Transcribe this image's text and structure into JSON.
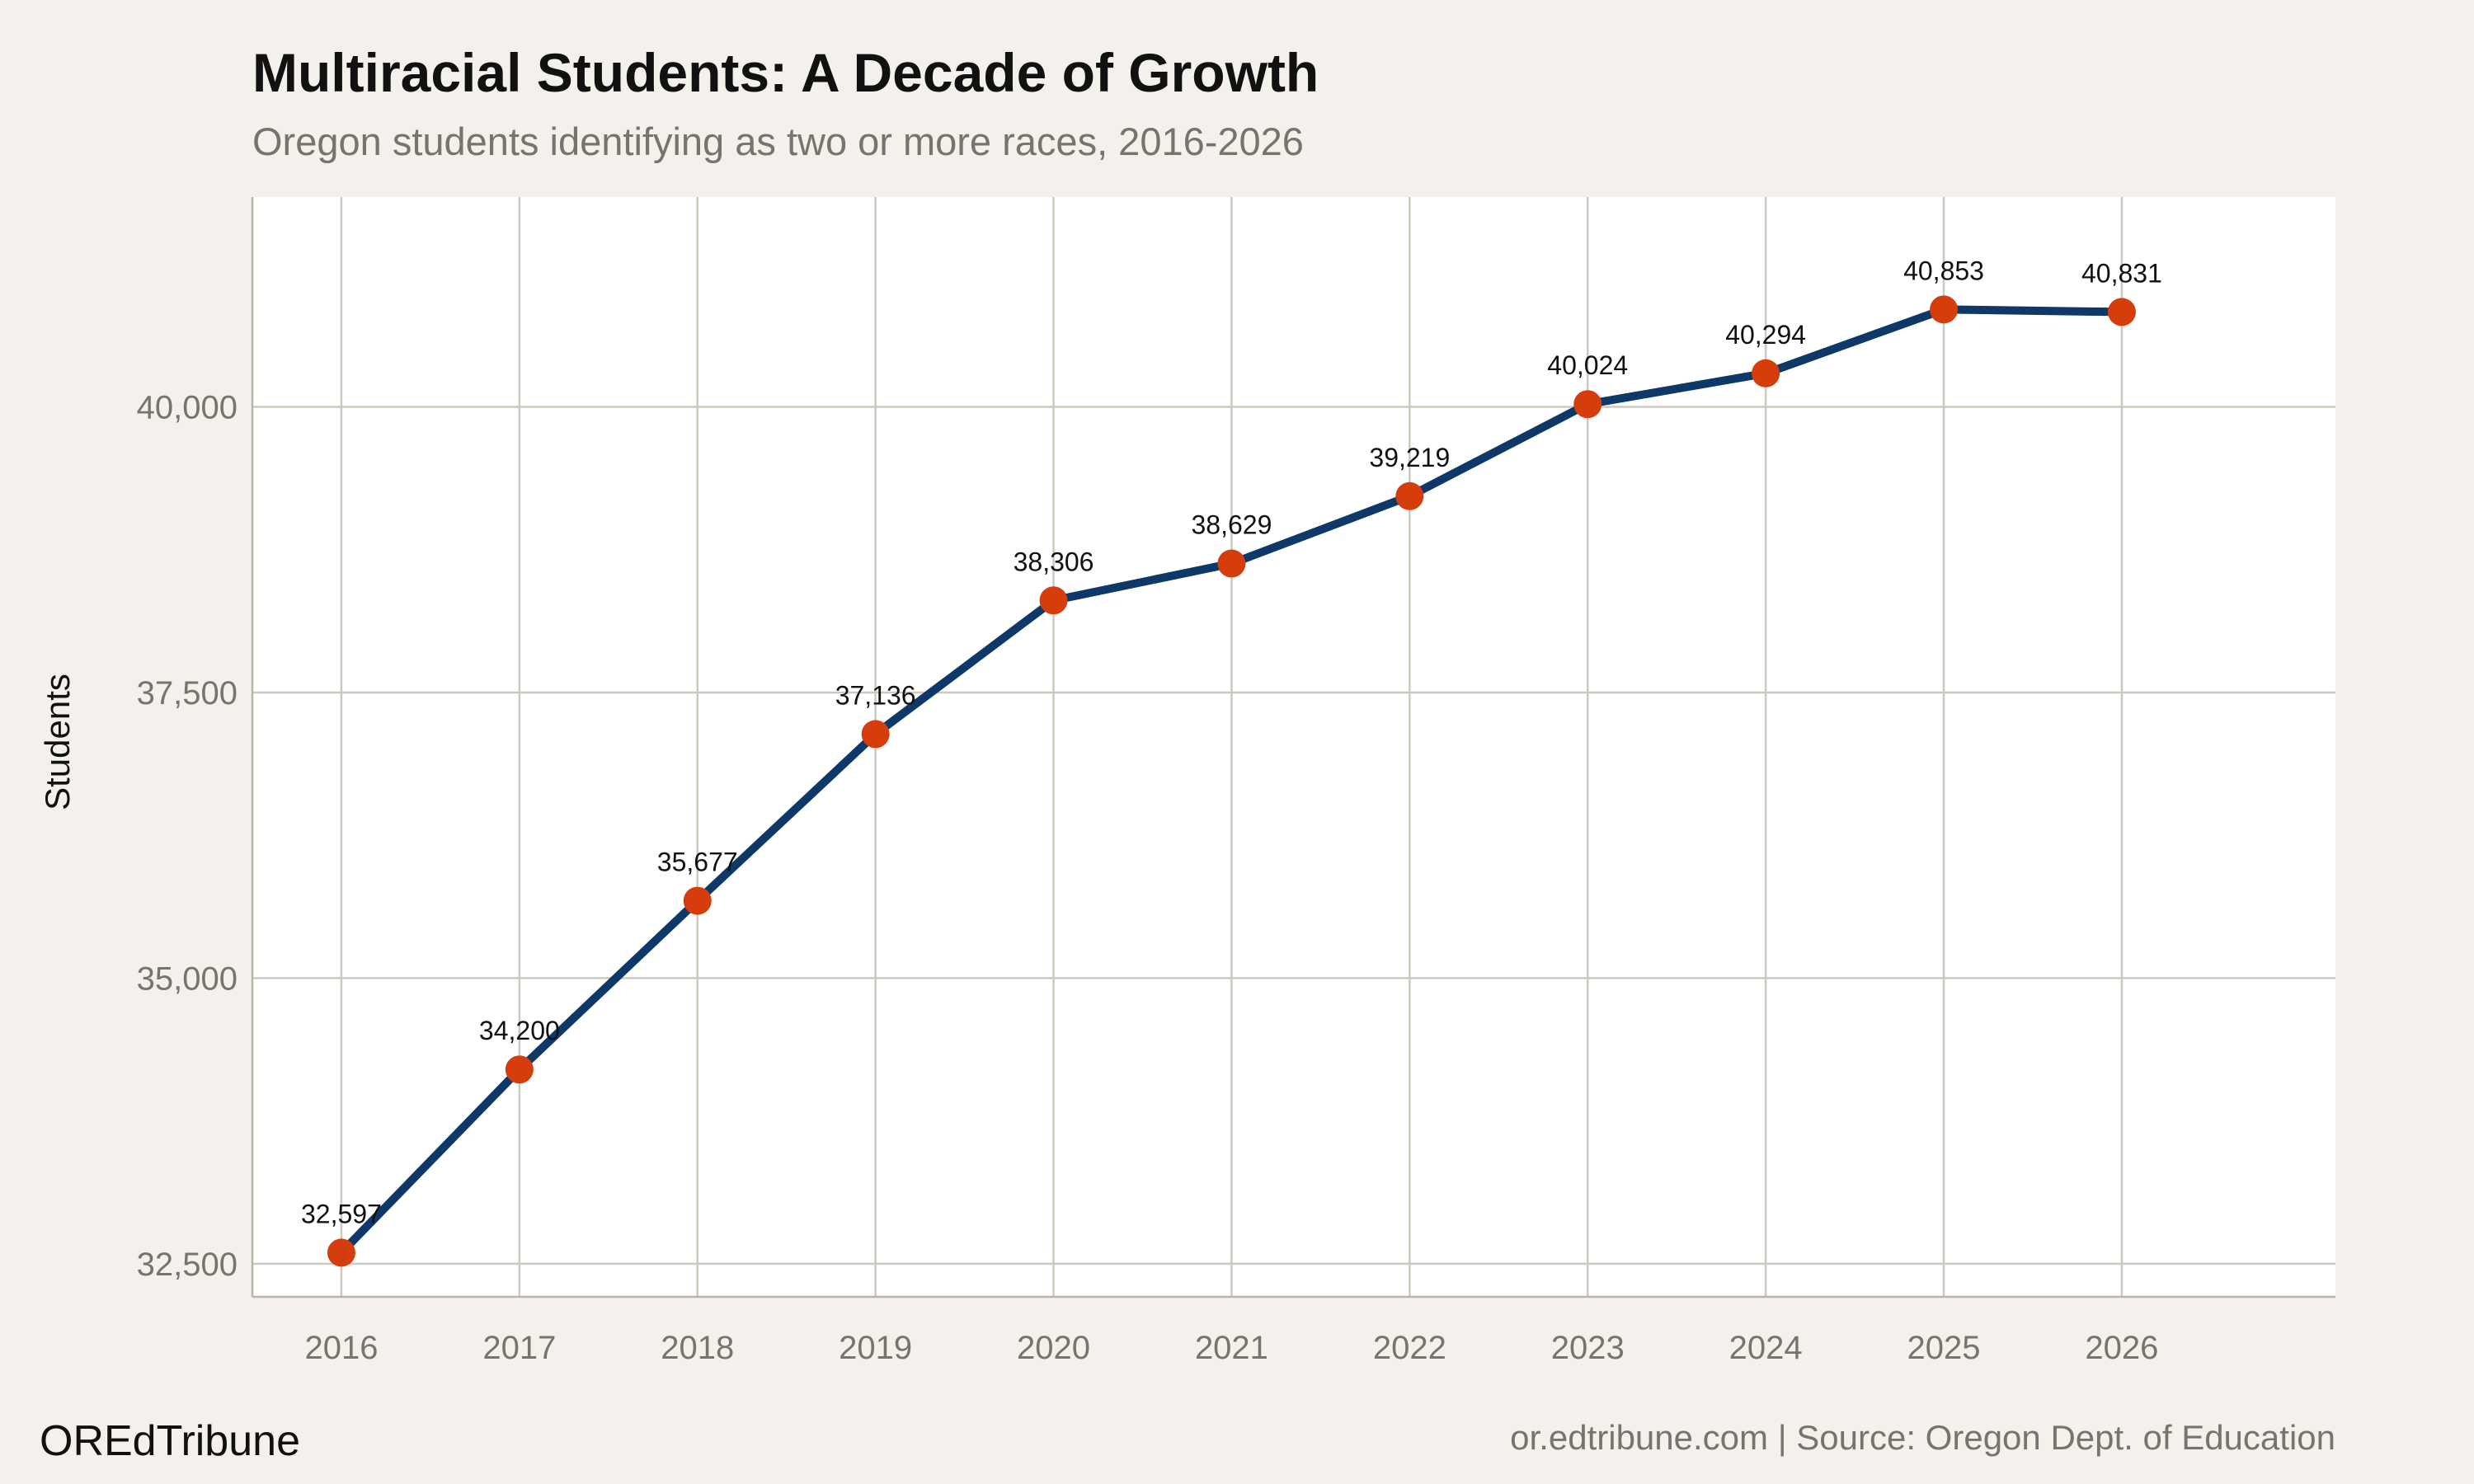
{
  "chart_data": {
    "type": "line",
    "title": "Multiracial Students: A Decade of Growth",
    "subtitle": "Oregon students identifying as two or more races, 2016-2026",
    "y_label": "Students",
    "brand": "OREdTribune",
    "caption": "or.edtribune.com | Source: Oregon Dept. of Education",
    "x": [
      2016,
      2017,
      2018,
      2019,
      2020,
      2021,
      2022,
      2023,
      2024,
      2025,
      2026
    ],
    "series": [
      {
        "name": "Students",
        "color": "#0d3868",
        "marker_color": "#d53d0c",
        "values": [
          32597,
          34200,
          35677,
          37136,
          38306,
          38629,
          39219,
          40024,
          40294,
          40853,
          40831
        ],
        "value_labels": [
          "32,597",
          "34,200",
          "35,677",
          "37,136",
          "38,306",
          "38,629",
          "39,219",
          "40,024",
          "40,294",
          "40,853",
          "40,831"
        ]
      }
    ],
    "xlim": [
      2015.5,
      2027.2
    ],
    "xticks": [
      2016,
      2017,
      2018,
      2019,
      2020,
      2021,
      2022,
      2023,
      2024,
      2025,
      2026
    ],
    "ylim": [
      32210,
      41837
    ],
    "yticks": [
      {
        "value": 32500,
        "label": "32,500"
      },
      {
        "value": 35000,
        "label": "35,000"
      },
      {
        "value": 37500,
        "label": "37,500"
      },
      {
        "value": 40000,
        "label": "40,000"
      }
    ],
    "grid": true
  }
}
